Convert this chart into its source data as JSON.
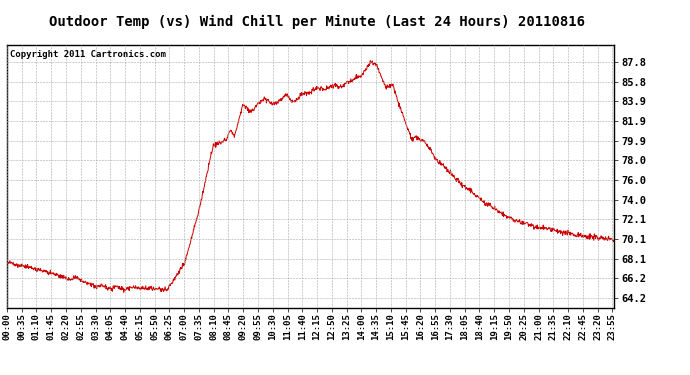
{
  "title": "Outdoor Temp (vs) Wind Chill per Minute (Last 24 Hours) 20110816",
  "copyright_text": "Copyright 2011 Cartronics.com",
  "line_color": "#cc0000",
  "background_color": "#ffffff",
  "grid_color": "#aaaaaa",
  "ylim": [
    63.2,
    89.5
  ],
  "yticks": [
    64.2,
    66.2,
    68.1,
    70.1,
    72.1,
    74.0,
    76.0,
    78.0,
    79.9,
    81.9,
    83.9,
    85.8,
    87.8
  ],
  "title_fontsize": 10,
  "copyright_fontsize": 6.5,
  "tick_fontsize": 6.5,
  "ytick_fontsize": 7.5
}
